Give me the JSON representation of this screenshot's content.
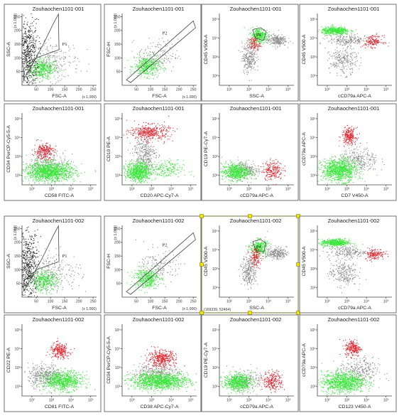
{
  "colors": {
    "gated": "#39e83a",
    "positive": "#e0202a",
    "ungated": "#8a8a8a",
    "outside": "#2a2a2a"
  },
  "chart_data": [
    {
      "type": "scatter",
      "title": "Zouhaochen1101-001",
      "xlabel": "FSC-A",
      "ylabel": "SSC-A",
      "scale": "linear",
      "xticks": [
        "50",
        "100",
        "150",
        "200",
        "250"
      ],
      "yticks": [
        "50",
        "100",
        "150",
        "200",
        "250"
      ],
      "unit_label": "(x 1,000)",
      "gate": {
        "label": "P1"
      },
      "series": [
        {
          "color": "gated",
          "points": [
            [
              70,
              60,
              400,
              25,
              18
            ]
          ]
        },
        {
          "color": "outside",
          "points": [
            [
              20,
              110,
              550,
              18,
              65
            ]
          ]
        },
        {
          "color": "ungated",
          "points": [
            [
              110,
              90,
              220,
              45,
              35
            ]
          ]
        }
      ]
    },
    {
      "type": "scatter",
      "title": "Zouhaochen1101-001",
      "xlabel": "FSC-A",
      "ylabel": "FSC-H",
      "scale": "linear",
      "xticks": [
        "50",
        "100",
        "150",
        "200",
        "250"
      ],
      "yticks": [
        "50",
        "100",
        "150",
        "200",
        "250"
      ],
      "unit_label": "(x 1,000)",
      "gate": {
        "label": "P2"
      },
      "series": [
        {
          "color": "gated",
          "points": [
            [
              85,
              70,
              380,
              22,
              18
            ]
          ]
        },
        {
          "color": "ungated",
          "points": [
            [
              125,
              110,
              150,
              35,
              30
            ]
          ]
        }
      ]
    },
    {
      "type": "scatter",
      "title": "Zouhaochen1101-001",
      "xlabel": "SSC-A",
      "ylabel": "CD45 V500-A",
      "scale": "log",
      "xticks": [
        "10²",
        "10³",
        "10⁴",
        "10⁵"
      ],
      "yticks": [
        "10²",
        "10³",
        "10⁴",
        "10⁵"
      ],
      "gate": {
        "label": "P4"
      },
      "series": [
        {
          "color": "gated",
          "points": [
            [
              3.5,
              4.15,
              300,
              0.22,
              0.2
            ]
          ]
        },
        {
          "color": "positive",
          "points": [
            [
              3.25,
              3.7,
              110,
              0.15,
              0.2
            ]
          ]
        },
        {
          "color": "ungated",
          "points": [
            [
              4.4,
              3.9,
              220,
              0.25,
              0.15
            ],
            [
              3.0,
              3.0,
              250,
              0.18,
              0.4
            ]
          ]
        }
      ]
    },
    {
      "type": "scatter",
      "title": "Zouhaochen1101-001",
      "xlabel": "cCD79a APC-A",
      "ylabel": "CD45 V500-A",
      "scale": "log",
      "xticks": [
        "10²",
        "10³",
        "10⁴",
        "10⁵"
      ],
      "yticks": [
        "10²",
        "10³",
        "10⁴",
        "10⁵"
      ],
      "series": [
        {
          "color": "gated",
          "points": [
            [
              2.4,
              4.4,
              450,
              0.35,
              0.1
            ]
          ]
        },
        {
          "color": "positive",
          "points": [
            [
              4.3,
              3.85,
              150,
              0.25,
              0.15
            ]
          ]
        },
        {
          "color": "ungated",
          "points": [
            [
              3.0,
              3.9,
              200,
              0.5,
              0.15
            ],
            [
              2.8,
              2.8,
              250,
              0.35,
              0.35
            ]
          ]
        }
      ]
    },
    {
      "type": "scatter",
      "title": "Zouhaochen1101-001",
      "xlabel": "CD58 FITC-A",
      "ylabel": "CD34 PerCP-Cy5-5-A",
      "scale": "log",
      "xticks": [
        "10²",
        "10³",
        "10⁴",
        "10⁵"
      ],
      "yticks": [
        "10²",
        "10³",
        "10⁴",
        "10⁵"
      ],
      "series": [
        {
          "color": "ungated",
          "points": [
            [
              2.8,
              2.6,
              300,
              0.5,
              0.4
            ]
          ]
        },
        {
          "color": "positive",
          "points": [
            [
              2.6,
              3.3,
              220,
              0.25,
              0.2
            ]
          ]
        },
        {
          "color": "gated",
          "points": [
            [
              2.9,
              2.2,
              1100,
              0.65,
              0.25
            ]
          ]
        }
      ]
    },
    {
      "type": "scatter",
      "title": "Zouhaochen1101-001",
      "xlabel": "CD20 APC-Cy7-A",
      "ylabel": "CD10 PE-A",
      "scale": "log",
      "xticks": [
        "10²",
        "10³",
        "10⁴",
        "10⁵"
      ],
      "yticks": [
        "10²",
        "10³",
        "10⁴",
        "10⁵"
      ],
      "series": [
        {
          "color": "ungated",
          "points": [
            [
              2.6,
              3.1,
              350,
              0.3,
              0.5
            ]
          ]
        },
        {
          "color": "positive",
          "points": [
            [
              2.9,
              4.3,
              380,
              0.5,
              0.2
            ]
          ]
        },
        {
          "color": "gated",
          "points": [
            [
              2.3,
              2.2,
              650,
              0.3,
              0.25
            ],
            [
              3.6,
              2.3,
              200,
              0.5,
              0.25
            ]
          ]
        }
      ]
    },
    {
      "type": "scatter",
      "title": "Zouhaochen1101-001",
      "xlabel": "cCD79a APC-A",
      "ylabel": "CD19 PE-Cy7-A",
      "scale": "log",
      "xticks": [
        "10²",
        "10³",
        "10⁴",
        "10⁵"
      ],
      "yticks": [
        "10²",
        "10³",
        "10⁴",
        "10⁵"
      ],
      "series": [
        {
          "color": "ungated",
          "points": [
            [
              2.8,
              2.3,
              250,
              0.4,
              0.25
            ]
          ]
        },
        {
          "color": "gated",
          "points": [
            [
              2.3,
              2.2,
              550,
              0.35,
              0.22
            ]
          ]
        },
        {
          "color": "positive",
          "points": [
            [
              4.2,
              2.3,
              200,
              0.25,
              0.25
            ]
          ]
        }
      ]
    },
    {
      "type": "scatter",
      "title": "Zouhaochen1101-001",
      "xlabel": "CD7 V450-A",
      "ylabel": "cCD79a APC-A",
      "scale": "log",
      "xticks": [
        "10²",
        "10³",
        "10⁴",
        "10⁵"
      ],
      "yticks": [
        "10²",
        "10³",
        "10⁴",
        "10⁵"
      ],
      "series": [
        {
          "color": "ungated",
          "points": [
            [
              3.6,
              2.8,
              280,
              0.5,
              0.35
            ]
          ]
        },
        {
          "color": "positive",
          "points": [
            [
              3.1,
              4.1,
              220,
              0.18,
              0.22
            ]
          ]
        },
        {
          "color": "gated",
          "points": [
            [
              2.6,
              2.3,
              900,
              0.45,
              0.3
            ]
          ]
        }
      ]
    },
    {
      "type": "scatter",
      "title": "Zouhaochen1101-002",
      "xlabel": "FSC-A",
      "ylabel": "SSC-A",
      "scale": "linear",
      "xticks": [
        "50",
        "100",
        "150",
        "200",
        "250"
      ],
      "yticks": [
        "50",
        "100",
        "150",
        "200",
        "250"
      ],
      "unit_label": "(x 1,000)",
      "gate": {
        "label": "P1"
      },
      "series": [
        {
          "color": "gated",
          "points": [
            [
              75,
              60,
              380,
              25,
              18
            ]
          ]
        },
        {
          "color": "outside",
          "points": [
            [
              20,
              110,
              550,
              18,
              65
            ]
          ]
        },
        {
          "color": "ungated",
          "points": [
            [
              115,
              95,
              220,
              45,
              35
            ]
          ]
        }
      ]
    },
    {
      "type": "scatter",
      "title": "Zouhaochen1101-002",
      "xlabel": "FSC-A",
      "ylabel": "FSC-H",
      "scale": "linear",
      "xticks": [
        "50",
        "100",
        "150",
        "200",
        "250"
      ],
      "yticks": [
        "50",
        "100",
        "150",
        "200",
        "250"
      ],
      "unit_label": "(x 1,000)",
      "gate": {
        "label": "P2"
      },
      "series": [
        {
          "color": "gated",
          "points": [
            [
              85,
              70,
              380,
              22,
              18
            ]
          ]
        },
        {
          "color": "ungated",
          "points": [
            [
              130,
              115,
              150,
              35,
              30
            ]
          ]
        }
      ]
    },
    {
      "type": "scatter",
      "title": "Zouhaochen1101-002",
      "xlabel": "SSC-A",
      "ylabel": "CD45 V500-A",
      "scale": "log",
      "xticks": [
        "10²",
        "10³",
        "10⁴",
        "10⁵"
      ],
      "yticks": [
        "10²",
        "10³",
        "10⁴",
        "10⁵"
      ],
      "gate": {
        "label": "P4"
      },
      "selection_label": "(169339, 53464)",
      "series": [
        {
          "color": "gated",
          "points": [
            [
              3.5,
              4.15,
              300,
              0.22,
              0.2
            ]
          ]
        },
        {
          "color": "positive",
          "points": [
            [
              3.3,
              3.6,
              140,
              0.15,
              0.25
            ]
          ]
        },
        {
          "color": "ungated",
          "points": [
            [
              4.4,
              3.85,
              220,
              0.25,
              0.15
            ],
            [
              3.0,
              2.9,
              260,
              0.18,
              0.4
            ]
          ]
        }
      ]
    },
    {
      "type": "scatter",
      "title": "Zouhaochen1101-002",
      "xlabel": "cCD79a APC-A",
      "ylabel": "CD45 V500-A",
      "scale": "log",
      "xticks": [
        "10²",
        "10³",
        "10⁴",
        "10⁵"
      ],
      "yticks": [
        "10²",
        "10³",
        "10⁴",
        "10⁵"
      ],
      "series": [
        {
          "color": "gated",
          "points": [
            [
              2.4,
              4.4,
              450,
              0.35,
              0.1
            ]
          ]
        },
        {
          "color": "positive",
          "points": [
            [
              4.4,
              3.8,
              150,
              0.25,
              0.15
            ]
          ]
        },
        {
          "color": "ungated",
          "points": [
            [
              3.0,
              3.9,
              200,
              0.5,
              0.15
            ],
            [
              2.8,
              2.8,
              250,
              0.35,
              0.35
            ]
          ]
        }
      ]
    },
    {
      "type": "scatter",
      "title": "Zouhaochen1101-002",
      "xlabel": "CD81 FITC-A",
      "ylabel": "CD22 PE-A",
      "scale": "log",
      "xticks": [
        "10²",
        "10³",
        "10⁴",
        "10⁵"
      ],
      "yticks": [
        "10²",
        "10³",
        "10⁴",
        "10⁵"
      ],
      "series": [
        {
          "color": "ungated",
          "points": [
            [
              2.7,
              2.6,
              400,
              0.45,
              0.3
            ]
          ]
        },
        {
          "color": "positive",
          "points": [
            [
              3.4,
              3.9,
              230,
              0.25,
              0.2
            ]
          ]
        },
        {
          "color": "gated",
          "points": [
            [
              3.6,
              2.3,
              700,
              0.5,
              0.25
            ]
          ]
        }
      ]
    },
    {
      "type": "scatter",
      "title": "Zouhaochen1101-002",
      "xlabel": "CD38 APC-Cy7-A",
      "ylabel": "CD34 PerCP-Cy5-5-A",
      "scale": "log",
      "xticks": [
        "10²",
        "10³",
        "10⁴",
        "10⁵"
      ],
      "yticks": [
        "10²",
        "10³",
        "10⁴",
        "10⁵"
      ],
      "series": [
        {
          "color": "ungated",
          "points": [
            [
              3.2,
              2.7,
              350,
              0.6,
              0.3
            ]
          ]
        },
        {
          "color": "positive",
          "points": [
            [
              3.5,
              3.5,
              350,
              0.35,
              0.22
            ]
          ]
        },
        {
          "color": "gated",
          "points": [
            [
              3.4,
              2.3,
              1100,
              0.75,
              0.22
            ]
          ]
        }
      ]
    },
    {
      "type": "scatter",
      "title": "Zouhaochen1101-002",
      "xlabel": "cCD79a APC-A",
      "ylabel": "CD19 PE-Cy7-A",
      "scale": "log",
      "xticks": [
        "10²",
        "10³",
        "10⁴",
        "10⁵"
      ],
      "yticks": [
        "10²",
        "10³",
        "10⁴",
        "10⁵"
      ],
      "series": [
        {
          "color": "ungated",
          "points": [
            [
              2.8,
              2.3,
              250,
              0.4,
              0.25
            ]
          ]
        },
        {
          "color": "gated",
          "points": [
            [
              2.4,
              2.25,
              550,
              0.35,
              0.22
            ]
          ]
        },
        {
          "color": "positive",
          "points": [
            [
              4.2,
              2.3,
              220,
              0.25,
              0.25
            ]
          ]
        }
      ]
    },
    {
      "type": "scatter",
      "title": "Zouhaochen1101-002",
      "xlabel": "CD123 V450-A",
      "ylabel": "cCD79a APC-A",
      "scale": "log",
      "xticks": [
        "10²",
        "10³",
        "10⁴",
        "10⁵"
      ],
      "yticks": [
        "10²",
        "10³",
        "10⁴",
        "10⁵"
      ],
      "series": [
        {
          "color": "ungated",
          "points": [
            [
              3.6,
              2.8,
              280,
              0.5,
              0.35
            ]
          ]
        },
        {
          "color": "positive",
          "points": [
            [
              3.3,
              4.05,
              220,
              0.2,
              0.22
            ]
          ]
        },
        {
          "color": "gated",
          "points": [
            [
              2.8,
              2.25,
              900,
              0.55,
              0.28
            ]
          ]
        }
      ]
    }
  ]
}
